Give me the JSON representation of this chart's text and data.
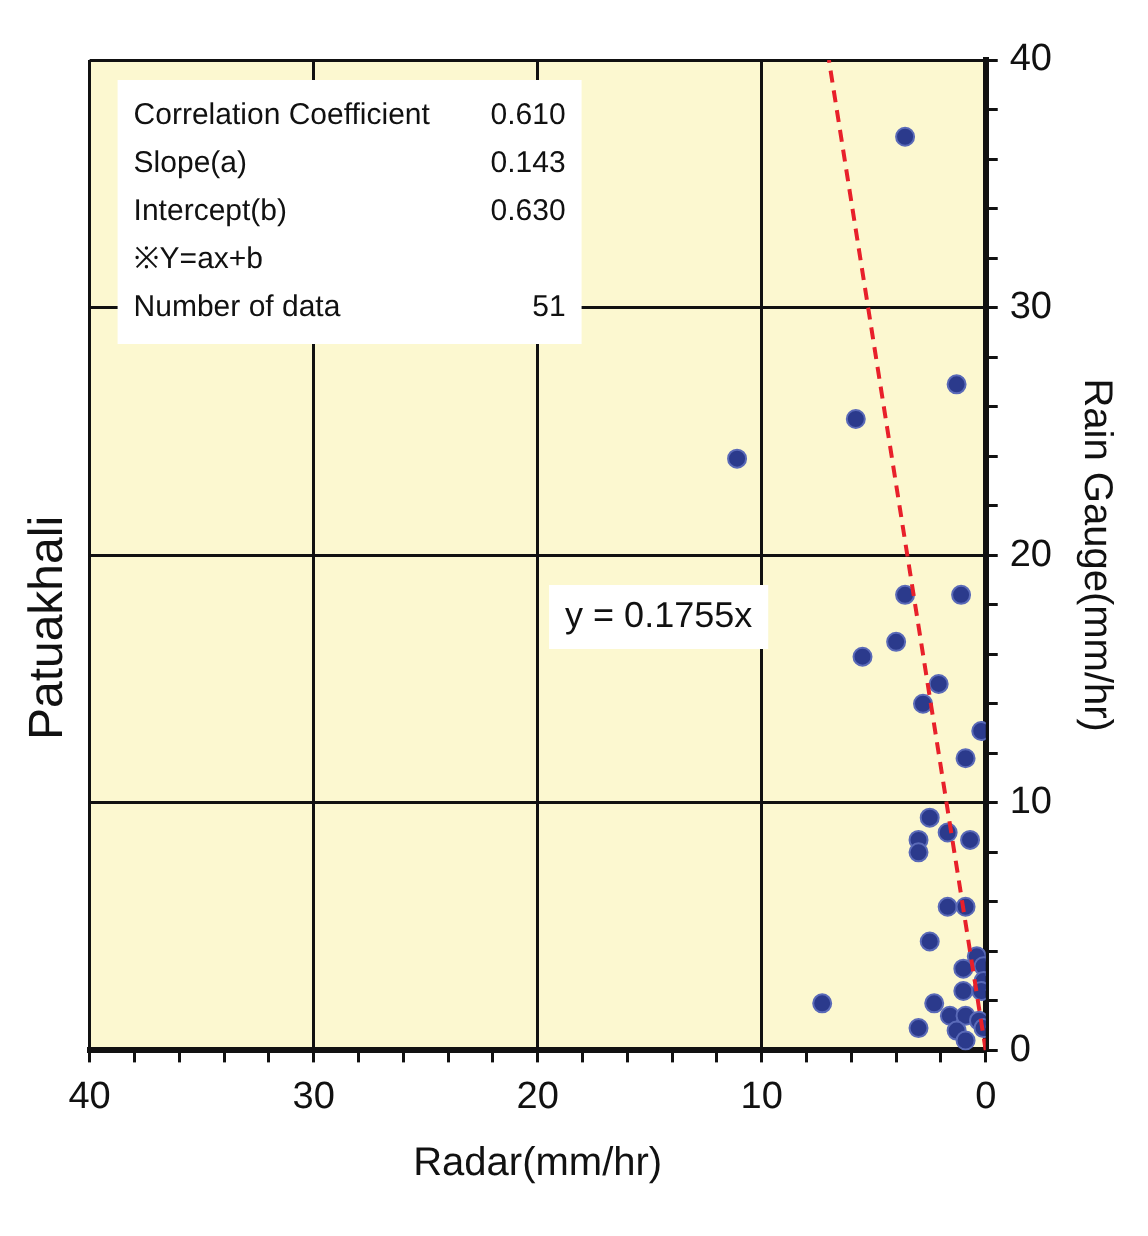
{
  "chart_data": {
    "type": "scatter",
    "title": "Patuakhali",
    "xlabel": "Radar(mm/hr)",
    "ylabel": "Rain Gauge(mm/hr)",
    "xlim": [
      40,
      0
    ],
    "ylim": [
      0,
      40
    ],
    "xticks": [
      40,
      {
        "value": 38,
        "label": null
      },
      {
        "value": 36,
        "label": null
      },
      {
        "value": 34,
        "label": null
      },
      {
        "value": 32,
        "label": null
      },
      30,
      {
        "value": 28,
        "label": null
      },
      {
        "value": 26,
        "label": null
      },
      {
        "value": 24,
        "label": null
      },
      {
        "value": 22,
        "label": null
      },
      20,
      {
        "value": 18,
        "label": null
      },
      {
        "value": 16,
        "label": null
      },
      {
        "value": 14,
        "label": null
      },
      {
        "value": 12,
        "label": null
      },
      10,
      {
        "value": 8,
        "label": null
      },
      {
        "value": 6,
        "label": null
      },
      {
        "value": 4,
        "label": null
      },
      {
        "value": 2,
        "label": null
      },
      0
    ],
    "yticks": [
      0,
      {
        "value": 2,
        "label": null
      },
      {
        "value": 4,
        "label": null
      },
      {
        "value": 6,
        "label": null
      },
      {
        "value": 8,
        "label": null
      },
      10,
      {
        "value": 12,
        "label": null
      },
      {
        "value": 14,
        "label": null
      },
      {
        "value": 16,
        "label": null
      },
      {
        "value": 18,
        "label": null
      },
      20,
      {
        "value": 22,
        "label": null
      },
      {
        "value": 24,
        "label": null
      },
      {
        "value": 26,
        "label": null
      },
      {
        "value": 28,
        "label": null
      },
      30,
      {
        "value": 32,
        "label": null
      },
      {
        "value": 34,
        "label": null
      },
      {
        "value": 36,
        "label": null
      },
      {
        "value": 38,
        "label": null
      },
      40
    ],
    "grid": true,
    "legend": false,
    "marker": "circle",
    "series": [
      {
        "type": "scatter",
        "color": "#2b3a8c",
        "x": [
          3.6,
          1.3,
          5.8,
          11.1,
          3.6,
          1.1,
          4.0,
          5.5,
          2.1,
          2.8,
          0.2,
          0.9,
          2.5,
          1.7,
          3.0,
          3.0,
          0.7,
          1.7,
          0.9,
          2.5,
          0.4,
          0.1,
          1.0,
          0.1,
          1.0,
          0.2,
          7.3,
          2.3,
          1.6,
          0.9,
          0.3,
          3.0,
          1.3,
          0.1,
          0.9
        ],
        "values": [
          36.9,
          26.9,
          25.5,
          23.9,
          18.4,
          18.4,
          16.5,
          15.9,
          14.8,
          14.0,
          12.9,
          11.8,
          9.4,
          8.8,
          8.5,
          8.0,
          8.5,
          5.8,
          5.8,
          4.4,
          3.8,
          3.4,
          3.3,
          2.8,
          2.4,
          2.4,
          1.9,
          1.9,
          1.4,
          1.4,
          1.2,
          0.9,
          0.8,
          0.9,
          0.4
        ]
      },
      {
        "type": "line",
        "name": "y = 0.1755x",
        "color": "#e8202a",
        "line_style": "dashed",
        "marker": "none",
        "x": [
          0,
          7.0
        ],
        "values": [
          0,
          40
        ]
      }
    ],
    "annotations": [
      "Correlation Coefficient 0.610",
      "Slope(a) 0.143",
      "Intercept(b) 0.630",
      "※Y=ax+b",
      "Number of data 51"
    ]
  }
}
